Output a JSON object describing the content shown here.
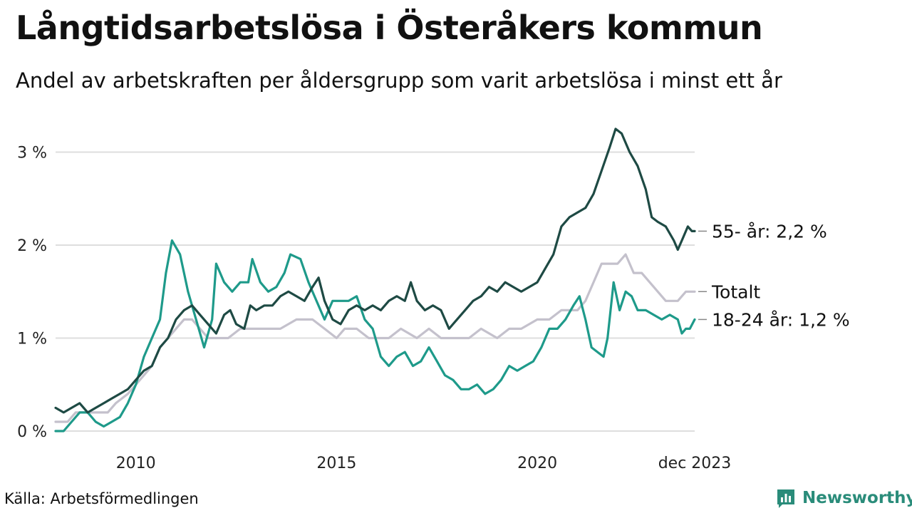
{
  "title": "Långtidsarbetslösa i Österåkers kommun",
  "subtitle": "Andel av arbetskraften per åldersgrupp som varit arbetslösa i minst ett år",
  "source": "Källa: Arbetsförmedlingen",
  "brand": {
    "name": "Newsworthy",
    "icon": "bar-chart-icon",
    "color": "#2a8c7a"
  },
  "chart_data": {
    "type": "line",
    "title": "Långtidsarbetslösa i Österåkers kommun",
    "ylabel": "",
    "xlabel": "",
    "ylim": [
      0,
      3.3
    ],
    "xlim": [
      2008.0,
      2023.92
    ],
    "grid": true,
    "yticks": [
      {
        "value": 0,
        "label": "0 %"
      },
      {
        "value": 1,
        "label": "1 %"
      },
      {
        "value": 2,
        "label": "2 %"
      },
      {
        "value": 3,
        "label": "3 %"
      }
    ],
    "xticks": [
      {
        "value": 2010,
        "label": "2010"
      },
      {
        "value": 2015,
        "label": "2015"
      },
      {
        "value": 2020,
        "label": "2020"
      },
      {
        "value": 2023.92,
        "label": "dec 2023"
      }
    ],
    "series": [
      {
        "name": "Totalt",
        "label": "Totalt",
        "color": "#c4c1cc",
        "points": [
          [
            2008.0,
            0.1
          ],
          [
            2008.3,
            0.1
          ],
          [
            2008.5,
            0.2
          ],
          [
            2008.8,
            0.2
          ],
          [
            2009.1,
            0.2
          ],
          [
            2009.3,
            0.2
          ],
          [
            2009.5,
            0.3
          ],
          [
            2009.8,
            0.4
          ],
          [
            2010.0,
            0.5
          ],
          [
            2010.2,
            0.6
          ],
          [
            2010.4,
            0.7
          ],
          [
            2010.6,
            0.9
          ],
          [
            2010.8,
            1.0
          ],
          [
            2011.0,
            1.1
          ],
          [
            2011.2,
            1.2
          ],
          [
            2011.4,
            1.2
          ],
          [
            2011.6,
            1.1
          ],
          [
            2011.8,
            1.0
          ],
          [
            2012.0,
            1.0
          ],
          [
            2012.3,
            1.0
          ],
          [
            2012.6,
            1.1
          ],
          [
            2013.0,
            1.1
          ],
          [
            2013.3,
            1.1
          ],
          [
            2013.6,
            1.1
          ],
          [
            2014.0,
            1.2
          ],
          [
            2014.4,
            1.2
          ],
          [
            2014.7,
            1.1
          ],
          [
            2015.0,
            1.0
          ],
          [
            2015.2,
            1.1
          ],
          [
            2015.5,
            1.1
          ],
          [
            2015.8,
            1.0
          ],
          [
            2016.0,
            1.0
          ],
          [
            2016.3,
            1.0
          ],
          [
            2016.6,
            1.1
          ],
          [
            2017.0,
            1.0
          ],
          [
            2017.3,
            1.1
          ],
          [
            2017.6,
            1.0
          ],
          [
            2018.0,
            1.0
          ],
          [
            2018.3,
            1.0
          ],
          [
            2018.6,
            1.1
          ],
          [
            2019.0,
            1.0
          ],
          [
            2019.3,
            1.1
          ],
          [
            2019.6,
            1.1
          ],
          [
            2020.0,
            1.2
          ],
          [
            2020.3,
            1.2
          ],
          [
            2020.6,
            1.3
          ],
          [
            2021.0,
            1.3
          ],
          [
            2021.2,
            1.4
          ],
          [
            2021.4,
            1.6
          ],
          [
            2021.6,
            1.8
          ],
          [
            2021.8,
            1.8
          ],
          [
            2022.0,
            1.8
          ],
          [
            2022.2,
            1.9
          ],
          [
            2022.4,
            1.7
          ],
          [
            2022.6,
            1.7
          ],
          [
            2022.8,
            1.6
          ],
          [
            2023.0,
            1.5
          ],
          [
            2023.2,
            1.4
          ],
          [
            2023.5,
            1.4
          ],
          [
            2023.7,
            1.5
          ],
          [
            2023.92,
            1.5
          ]
        ]
      },
      {
        "name": "18-24 år",
        "label": "18-24 år: 1,2 %",
        "color": "#1e9a8a",
        "points": [
          [
            2008.0,
            0.0
          ],
          [
            2008.2,
            0.0
          ],
          [
            2008.4,
            0.1
          ],
          [
            2008.6,
            0.2
          ],
          [
            2008.8,
            0.2
          ],
          [
            2009.0,
            0.1
          ],
          [
            2009.2,
            0.05
          ],
          [
            2009.4,
            0.1
          ],
          [
            2009.6,
            0.15
          ],
          [
            2009.8,
            0.3
          ],
          [
            2010.0,
            0.5
          ],
          [
            2010.2,
            0.8
          ],
          [
            2010.4,
            1.0
          ],
          [
            2010.6,
            1.2
          ],
          [
            2010.75,
            1.7
          ],
          [
            2010.9,
            2.05
          ],
          [
            2011.1,
            1.9
          ],
          [
            2011.3,
            1.5
          ],
          [
            2011.5,
            1.2
          ],
          [
            2011.7,
            0.9
          ],
          [
            2011.9,
            1.2
          ],
          [
            2012.0,
            1.8
          ],
          [
            2012.2,
            1.6
          ],
          [
            2012.4,
            1.5
          ],
          [
            2012.6,
            1.6
          ],
          [
            2012.8,
            1.6
          ],
          [
            2012.9,
            1.85
          ],
          [
            2013.1,
            1.6
          ],
          [
            2013.3,
            1.5
          ],
          [
            2013.5,
            1.55
          ],
          [
            2013.7,
            1.7
          ],
          [
            2013.85,
            1.9
          ],
          [
            2014.1,
            1.85
          ],
          [
            2014.3,
            1.6
          ],
          [
            2014.5,
            1.4
          ],
          [
            2014.7,
            1.2
          ],
          [
            2014.9,
            1.4
          ],
          [
            2015.1,
            1.4
          ],
          [
            2015.3,
            1.4
          ],
          [
            2015.5,
            1.45
          ],
          [
            2015.7,
            1.2
          ],
          [
            2015.9,
            1.1
          ],
          [
            2016.1,
            0.8
          ],
          [
            2016.3,
            0.7
          ],
          [
            2016.5,
            0.8
          ],
          [
            2016.7,
            0.85
          ],
          [
            2016.9,
            0.7
          ],
          [
            2017.1,
            0.75
          ],
          [
            2017.3,
            0.9
          ],
          [
            2017.5,
            0.75
          ],
          [
            2017.7,
            0.6
          ],
          [
            2017.9,
            0.55
          ],
          [
            2018.1,
            0.45
          ],
          [
            2018.3,
            0.45
          ],
          [
            2018.5,
            0.5
          ],
          [
            2018.7,
            0.4
          ],
          [
            2018.9,
            0.45
          ],
          [
            2019.1,
            0.55
          ],
          [
            2019.3,
            0.7
          ],
          [
            2019.5,
            0.65
          ],
          [
            2019.7,
            0.7
          ],
          [
            2019.9,
            0.75
          ],
          [
            2020.1,
            0.9
          ],
          [
            2020.3,
            1.1
          ],
          [
            2020.5,
            1.1
          ],
          [
            2020.7,
            1.2
          ],
          [
            2020.9,
            1.35
          ],
          [
            2021.05,
            1.45
          ],
          [
            2021.2,
            1.2
          ],
          [
            2021.35,
            0.9
          ],
          [
            2021.5,
            0.85
          ],
          [
            2021.65,
            0.8
          ],
          [
            2021.75,
            1.0
          ],
          [
            2021.9,
            1.6
          ],
          [
            2022.05,
            1.3
          ],
          [
            2022.2,
            1.5
          ],
          [
            2022.35,
            1.45
          ],
          [
            2022.5,
            1.3
          ],
          [
            2022.7,
            1.3
          ],
          [
            2022.9,
            1.25
          ],
          [
            2023.1,
            1.2
          ],
          [
            2023.3,
            1.25
          ],
          [
            2023.5,
            1.2
          ],
          [
            2023.6,
            1.05
          ],
          [
            2023.7,
            1.1
          ],
          [
            2023.8,
            1.1
          ],
          [
            2023.92,
            1.2
          ]
        ]
      },
      {
        "name": "55- år",
        "label": "55- år: 2,2 %",
        "color": "#1e4a44",
        "points": [
          [
            2008.0,
            0.25
          ],
          [
            2008.2,
            0.2
          ],
          [
            2008.4,
            0.25
          ],
          [
            2008.6,
            0.3
          ],
          [
            2008.8,
            0.2
          ],
          [
            2009.0,
            0.25
          ],
          [
            2009.2,
            0.3
          ],
          [
            2009.4,
            0.35
          ],
          [
            2009.6,
            0.4
          ],
          [
            2009.8,
            0.45
          ],
          [
            2010.0,
            0.55
          ],
          [
            2010.2,
            0.65
          ],
          [
            2010.4,
            0.7
          ],
          [
            2010.6,
            0.9
          ],
          [
            2010.8,
            1.0
          ],
          [
            2011.0,
            1.2
          ],
          [
            2011.2,
            1.3
          ],
          [
            2011.4,
            1.35
          ],
          [
            2011.6,
            1.25
          ],
          [
            2011.8,
            1.15
          ],
          [
            2012.0,
            1.05
          ],
          [
            2012.2,
            1.25
          ],
          [
            2012.35,
            1.3
          ],
          [
            2012.5,
            1.15
          ],
          [
            2012.7,
            1.1
          ],
          [
            2012.85,
            1.35
          ],
          [
            2013.0,
            1.3
          ],
          [
            2013.2,
            1.35
          ],
          [
            2013.4,
            1.35
          ],
          [
            2013.6,
            1.45
          ],
          [
            2013.8,
            1.5
          ],
          [
            2014.0,
            1.45
          ],
          [
            2014.2,
            1.4
          ],
          [
            2014.4,
            1.55
          ],
          [
            2014.55,
            1.65
          ],
          [
            2014.7,
            1.4
          ],
          [
            2014.9,
            1.2
          ],
          [
            2015.1,
            1.15
          ],
          [
            2015.3,
            1.3
          ],
          [
            2015.5,
            1.35
          ],
          [
            2015.7,
            1.3
          ],
          [
            2015.9,
            1.35
          ],
          [
            2016.1,
            1.3
          ],
          [
            2016.3,
            1.4
          ],
          [
            2016.5,
            1.45
          ],
          [
            2016.7,
            1.4
          ],
          [
            2016.85,
            1.6
          ],
          [
            2017.0,
            1.4
          ],
          [
            2017.2,
            1.3
          ],
          [
            2017.4,
            1.35
          ],
          [
            2017.6,
            1.3
          ],
          [
            2017.8,
            1.1
          ],
          [
            2018.0,
            1.2
          ],
          [
            2018.2,
            1.3
          ],
          [
            2018.4,
            1.4
          ],
          [
            2018.6,
            1.45
          ],
          [
            2018.8,
            1.55
          ],
          [
            2019.0,
            1.5
          ],
          [
            2019.2,
            1.6
          ],
          [
            2019.4,
            1.55
          ],
          [
            2019.6,
            1.5
          ],
          [
            2019.8,
            1.55
          ],
          [
            2020.0,
            1.6
          ],
          [
            2020.2,
            1.75
          ],
          [
            2020.4,
            1.9
          ],
          [
            2020.6,
            2.2
          ],
          [
            2020.8,
            2.3
          ],
          [
            2021.0,
            2.35
          ],
          [
            2021.2,
            2.4
          ],
          [
            2021.4,
            2.55
          ],
          [
            2021.6,
            2.8
          ],
          [
            2021.8,
            3.05
          ],
          [
            2021.95,
            3.25
          ],
          [
            2022.1,
            3.2
          ],
          [
            2022.3,
            3.0
          ],
          [
            2022.5,
            2.85
          ],
          [
            2022.7,
            2.6
          ],
          [
            2022.85,
            2.3
          ],
          [
            2023.0,
            2.25
          ],
          [
            2023.2,
            2.2
          ],
          [
            2023.4,
            2.05
          ],
          [
            2023.5,
            1.95
          ],
          [
            2023.6,
            2.05
          ],
          [
            2023.75,
            2.2
          ],
          [
            2023.85,
            2.15
          ],
          [
            2023.92,
            2.15
          ]
        ]
      }
    ]
  }
}
